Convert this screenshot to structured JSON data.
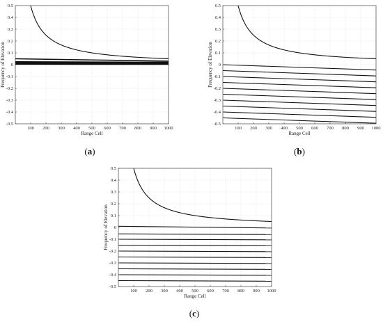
{
  "panels": [
    {
      "label_open": "(",
      "label_letter": "a",
      "label_close": ")"
    },
    {
      "label_open": "(",
      "label_letter": "b",
      "label_close": ")"
    },
    {
      "label_open": "(",
      "label_letter": "c",
      "label_close": ")"
    }
  ],
  "chart_data": [
    {
      "type": "line",
      "xlabel": "Range Cell",
      "ylabel": "Frequency of Elevation",
      "xlim": [
        0,
        1000
      ],
      "ylim": [
        -0.5,
        0.5
      ],
      "xticks": [
        100,
        200,
        300,
        400,
        500,
        600,
        700,
        800,
        900,
        1000
      ],
      "yticks": [
        -0.5,
        -0.4,
        -0.3,
        -0.2,
        -0.1,
        0,
        0.1,
        0.2,
        0.3,
        0.4,
        0.5
      ],
      "grid": true,
      "series": [
        {
          "x": [
            100,
            150,
            200,
            300,
            400,
            500,
            600,
            700,
            800,
            900,
            1000
          ],
          "y": [
            0.5,
            0.333,
            0.25,
            0.167,
            0.125,
            0.1,
            0.083,
            0.071,
            0.063,
            0.056,
            0.05
          ]
        },
        {
          "x": [
            0,
            1000
          ],
          "y": [
            0.05,
            0.03
          ]
        },
        {
          "x": [
            0,
            1000
          ],
          "y": [
            0.025,
            0.02
          ]
        },
        {
          "x": [
            0,
            1000
          ],
          "y": [
            0.02,
            0.017
          ]
        },
        {
          "x": [
            0,
            1000
          ],
          "y": [
            0.016,
            0.014
          ]
        },
        {
          "x": [
            0,
            1000
          ],
          "y": [
            0.013,
            0.011
          ]
        },
        {
          "x": [
            0,
            1000
          ],
          "y": [
            0.01,
            0.008
          ]
        },
        {
          "x": [
            0,
            1000
          ],
          "y": [
            0.007,
            0.005
          ]
        },
        {
          "x": [
            0,
            1000
          ],
          "y": [
            0.004,
            0.003
          ]
        }
      ]
    },
    {
      "type": "line",
      "xlabel": "Range Cell",
      "ylabel": "Frequency of Elevation",
      "xlim": [
        0,
        1000
      ],
      "ylim": [
        -0.5,
        0.5
      ],
      "xticks": [
        100,
        200,
        300,
        400,
        500,
        600,
        700,
        800,
        900,
        1000
      ],
      "yticks": [
        -0.5,
        -0.4,
        -0.3,
        -0.2,
        -0.1,
        0,
        0.1,
        0.2,
        0.3,
        0.4,
        0.5
      ],
      "grid": true,
      "series": [
        {
          "x": [
            100,
            150,
            200,
            300,
            400,
            500,
            600,
            700,
            800,
            900,
            1000
          ],
          "y": [
            0.5,
            0.333,
            0.25,
            0.167,
            0.125,
            0.1,
            0.083,
            0.071,
            0.063,
            0.056,
            0.05
          ]
        },
        {
          "x": [
            0,
            1000
          ],
          "y": [
            0.0,
            -0.045
          ]
        },
        {
          "x": [
            0,
            1000
          ],
          "y": [
            -0.05,
            -0.095
          ]
        },
        {
          "x": [
            0,
            1000
          ],
          "y": [
            -0.1,
            -0.145
          ]
        },
        {
          "x": [
            0,
            1000
          ],
          "y": [
            -0.15,
            -0.195
          ]
        },
        {
          "x": [
            0,
            1000
          ],
          "y": [
            -0.2,
            -0.245
          ]
        },
        {
          "x": [
            0,
            1000
          ],
          "y": [
            -0.25,
            -0.295
          ]
        },
        {
          "x": [
            0,
            1000
          ],
          "y": [
            -0.3,
            -0.345
          ]
        },
        {
          "x": [
            0,
            1000
          ],
          "y": [
            -0.35,
            -0.395
          ]
        },
        {
          "x": [
            0,
            1000
          ],
          "y": [
            -0.4,
            -0.445
          ]
        },
        {
          "x": [
            0,
            1000
          ],
          "y": [
            -0.45,
            -0.495
          ]
        }
      ]
    },
    {
      "type": "line",
      "xlabel": "Range Cell",
      "ylabel": "Frequency of Elevation",
      "xlim": [
        0,
        1000
      ],
      "ylim": [
        -0.5,
        0.5
      ],
      "xticks": [
        100,
        200,
        300,
        400,
        500,
        600,
        700,
        800,
        900,
        1000
      ],
      "yticks": [
        -0.5,
        -0.4,
        -0.3,
        -0.2,
        -0.1,
        0,
        0.1,
        0.2,
        0.3,
        0.4,
        0.5
      ],
      "grid": true,
      "series": [
        {
          "x": [
            100,
            150,
            200,
            300,
            400,
            500,
            600,
            700,
            800,
            900,
            1000
          ],
          "y": [
            0.5,
            0.333,
            0.25,
            0.167,
            0.125,
            0.1,
            0.083,
            0.071,
            0.063,
            0.056,
            0.05
          ]
        },
        {
          "x": [
            0,
            1000
          ],
          "y": [
            0.01,
            -0.005
          ]
        },
        {
          "x": [
            0,
            1000
          ],
          "y": [
            -0.055,
            -0.06
          ]
        },
        {
          "x": [
            0,
            1000
          ],
          "y": [
            -0.1,
            -0.105
          ]
        },
        {
          "x": [
            0,
            1000
          ],
          "y": [
            -0.15,
            -0.155
          ]
        },
        {
          "x": [
            0,
            1000
          ],
          "y": [
            -0.2,
            -0.205
          ]
        },
        {
          "x": [
            0,
            1000
          ],
          "y": [
            -0.25,
            -0.255
          ]
        },
        {
          "x": [
            0,
            1000
          ],
          "y": [
            -0.3,
            -0.305
          ]
        },
        {
          "x": [
            0,
            1000
          ],
          "y": [
            -0.35,
            -0.355
          ]
        },
        {
          "x": [
            0,
            1000
          ],
          "y": [
            -0.4,
            -0.405
          ]
        },
        {
          "x": [
            0,
            1000
          ],
          "y": [
            -0.45,
            -0.455
          ]
        }
      ]
    }
  ]
}
